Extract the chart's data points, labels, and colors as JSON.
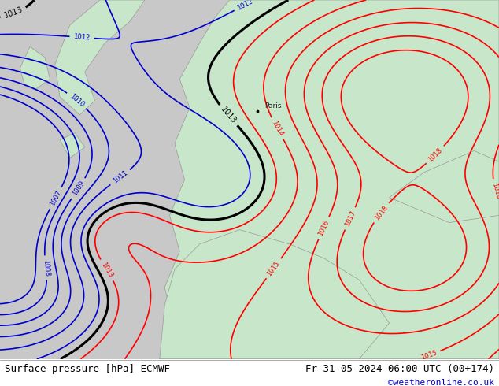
{
  "title_left": "Surface pressure [hPa] ECMWF",
  "title_right": "Fr 31-05-2024 06:00 UTC (00+174)",
  "watermark": "©weatheronline.co.uk",
  "land_color": "#c8e6c9",
  "sea_color": "#c8c8c8",
  "red_isobar_color": "#ff0000",
  "blue_isobar_color": "#0000cc",
  "black_isobar_color": "#000000",
  "font_color_bottom_left": "#000000",
  "font_color_bottom_right": "#000000",
  "font_color_watermark": "#0000cc",
  "bottom_bar_color": "#ffffff",
  "figsize": [
    6.34,
    4.9
  ],
  "dpi": 100
}
